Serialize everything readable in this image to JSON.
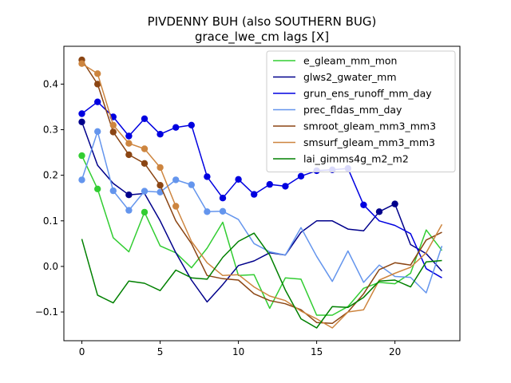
{
  "chart_data": {
    "type": "line",
    "title": "PIVDENNY BUH (also SOUTHERN BUG)",
    "subtitle": "grace_lwe_cm lags [X]",
    "xlabel": "",
    "ylabel": "",
    "xlim": [
      -1.15,
      24.15
    ],
    "ylim": [
      -0.163,
      0.483
    ],
    "x_ticks": [
      0,
      5,
      10,
      15,
      20
    ],
    "y_ticks": [
      -0.1,
      0.0,
      0.1,
      0.2,
      0.3,
      0.4
    ],
    "y_tick_labels": [
      "−0.1",
      "0.0",
      "0.1",
      "0.2",
      "0.3",
      "0.4"
    ],
    "legend_position": "top-right",
    "x": [
      0,
      1,
      2,
      3,
      4,
      5,
      6,
      7,
      8,
      9,
      10,
      11,
      12,
      13,
      14,
      15,
      16,
      17,
      18,
      19,
      20,
      21,
      22,
      23
    ],
    "series": [
      {
        "name": "e_gleam_mm_mon",
        "color": "#32cd32",
        "values": [
          0.243,
          0.17,
          0.063,
          0.032,
          0.119,
          0.045,
          0.03,
          -0.003,
          0.04,
          0.097,
          -0.02,
          -0.018,
          -0.092,
          -0.025,
          -0.028,
          -0.107,
          -0.107,
          -0.088,
          -0.048,
          -0.035,
          -0.038,
          -0.015,
          0.08,
          0.035
        ],
        "markers": [
          0,
          1,
          4
        ]
      },
      {
        "name": "glws2_gwater_mm",
        "color": "#00008b",
        "values": [
          0.317,
          0.222,
          0.182,
          0.157,
          0.16,
          0.1,
          0.03,
          -0.03,
          -0.078,
          -0.04,
          0.002,
          0.012,
          0.03,
          0.025,
          0.075,
          0.1,
          0.1,
          0.082,
          0.078,
          0.12,
          0.137,
          0.048,
          0.028,
          -0.01
        ],
        "markers": [
          0,
          3,
          19,
          20
        ]
      },
      {
        "name": "grun_ens_runoff_mm_day",
        "color": "#0000e0",
        "values": [
          0.335,
          0.361,
          0.328,
          0.286,
          0.324,
          0.29,
          0.305,
          0.31,
          0.197,
          0.15,
          0.191,
          0.158,
          0.18,
          0.176,
          0.198,
          0.21,
          0.212,
          0.215,
          0.135,
          0.1,
          0.09,
          0.072,
          -0.005,
          -0.025
        ],
        "markers": [
          0,
          1,
          2,
          3,
          4,
          5,
          6,
          7,
          8,
          9,
          10,
          11,
          12,
          13,
          14,
          15,
          16,
          17,
          18
        ]
      },
      {
        "name": "prec_fldas_mm_day",
        "color": "#6495ed",
        "values": [
          0.19,
          0.296,
          0.166,
          0.123,
          0.165,
          0.163,
          0.19,
          0.179,
          0.12,
          0.121,
          0.103,
          0.05,
          0.032,
          0.025,
          0.085,
          0.022,
          -0.033,
          0.034,
          -0.035,
          0.003,
          -0.022,
          -0.024,
          -0.058,
          0.045
        ],
        "markers": [
          0,
          1,
          2,
          3,
          4,
          5,
          6,
          7,
          8,
          9
        ]
      },
      {
        "name": "smroot_gleam_mm3_mm3",
        "color": "#8b4513",
        "values": [
          0.453,
          0.4,
          0.295,
          0.245,
          0.226,
          0.178,
          0.1,
          0.05,
          -0.02,
          -0.027,
          -0.03,
          -0.06,
          -0.075,
          -0.082,
          -0.095,
          -0.123,
          -0.125,
          -0.1,
          -0.06,
          -0.007,
          0.008,
          0.003,
          0.058,
          0.075
        ],
        "markers": [
          0,
          1,
          2,
          3,
          4,
          5
        ]
      },
      {
        "name": "smsurf_gleam_mm3_mm3",
        "color": "#cd853f",
        "values": [
          0.445,
          0.423,
          0.31,
          0.27,
          0.258,
          0.217,
          0.132,
          0.055,
          0.008,
          -0.02,
          -0.018,
          -0.045,
          -0.065,
          -0.075,
          -0.098,
          -0.115,
          -0.135,
          -0.1,
          -0.095,
          -0.03,
          -0.015,
          -0.002,
          0.03,
          0.092
        ],
        "markers": [
          0,
          1,
          2,
          3,
          4,
          5,
          6
        ]
      },
      {
        "name": "lai_gimms4g_m2_m2",
        "color": "#008000",
        "values": [
          0.06,
          -0.063,
          -0.08,
          -0.032,
          -0.037,
          -0.053,
          -0.008,
          -0.025,
          -0.028,
          0.02,
          0.055,
          0.073,
          0.025,
          -0.052,
          -0.115,
          -0.135,
          -0.088,
          -0.09,
          -0.068,
          -0.032,
          -0.03,
          -0.045,
          0.01,
          0.013
        ],
        "markers": []
      }
    ]
  }
}
